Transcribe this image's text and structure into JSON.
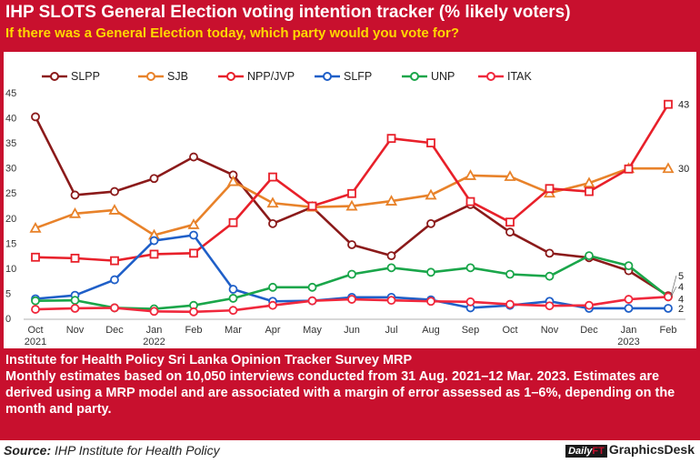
{
  "header": {
    "title": "IHP SLOTS General Election voting intention tracker (% likely voters)",
    "subtitle": "If there was a General Election today, which party would you vote for?"
  },
  "footer": {
    "line1": "Institute for Health Policy Sri Lanka Opinion Tracker Survey MRP",
    "line2": "Monthly estimates based on 10,050 interviews conducted from 31 Aug. 2021–12 Mar. 2023. Estimates are derived using a MRP model and are associated with a margin of error assessed as 1–6%, depending on the month and party."
  },
  "source": {
    "label": "Source:",
    "text": "IHP Institute for Health Policy"
  },
  "brand": {
    "logo": "Daily",
    "logo_ft": "FT",
    "name": "GraphicsDesk"
  },
  "colors": {
    "frame": "#c8102e",
    "SLPP": "#8b1a1a",
    "SJB": "#e8822a",
    "NPP/JVP": "#e8202a",
    "SLFP": "#1f5fc8",
    "UNP": "#1aa64a",
    "ITAK": "#f0283c"
  },
  "chart_data": {
    "type": "line",
    "title": "IHP SLOTS General Election voting intention tracker (% likely voters)",
    "subtitle": "If there was a General Election today, which party would you vote for?",
    "categories": [
      "Oct",
      "Nov",
      "Dec",
      "Jan",
      "Feb",
      "Mar",
      "Apr",
      "May",
      "Jun",
      "Jul",
      "Aug",
      "Sep",
      "Oct",
      "Nov",
      "Dec",
      "Jan",
      "Feb"
    ],
    "year_labels": [
      {
        "index": 0,
        "label": "2021"
      },
      {
        "index": 3,
        "label": "2022"
      },
      {
        "index": 15,
        "label": "2023"
      }
    ],
    "yticks": [
      0,
      5,
      10,
      15,
      20,
      25,
      30,
      35,
      40,
      45
    ],
    "ylim": [
      0,
      45
    ],
    "legend_position": "top",
    "grid": false,
    "series": [
      {
        "name": "SLPP",
        "values": [
          40.2,
          24.6,
          25.3,
          27.9,
          32.2,
          28.6,
          18.9,
          22.2,
          14.7,
          12.5,
          18.9,
          22.7,
          17.2,
          13.0,
          12.1,
          9.5,
          4.5
        ]
      },
      {
        "name": "SJB",
        "values": [
          18.0,
          20.9,
          21.6,
          16.6,
          18.7,
          27.3,
          23.0,
          22.2,
          22.4,
          23.4,
          24.6,
          28.5,
          28.3,
          25.0,
          27.0,
          29.9,
          29.9
        ]
      },
      {
        "name": "NPP/JVP",
        "values": [
          12.2,
          12.0,
          11.5,
          12.8,
          13.0,
          19.1,
          28.2,
          22.4,
          24.9,
          35.9,
          35.0,
          23.3,
          19.2,
          25.9,
          25.3,
          29.8,
          42.7
        ]
      },
      {
        "name": "SLFP",
        "values": [
          3.9,
          4.6,
          7.7,
          15.5,
          16.6,
          5.8,
          3.4,
          3.5,
          4.2,
          4.2,
          3.7,
          2.1,
          2.6,
          3.4,
          2.0,
          2.0,
          2.0
        ]
      },
      {
        "name": "UNP",
        "values": [
          3.5,
          3.6,
          2.1,
          1.9,
          2.6,
          4.0,
          6.2,
          6.2,
          8.8,
          10.1,
          9.2,
          10.1,
          8.8,
          8.4,
          12.5,
          10.5,
          4.3
        ]
      },
      {
        "name": "ITAK",
        "values": [
          1.8,
          2.0,
          2.1,
          1.4,
          1.3,
          1.6,
          2.6,
          3.5,
          3.8,
          3.6,
          3.4,
          3.3,
          2.8,
          2.5,
          2.6,
          3.8,
          4.3
        ]
      }
    ],
    "end_labels": [
      {
        "series": "NPP/JVP",
        "text": "43"
      },
      {
        "series": "SJB",
        "text": "30"
      },
      {
        "series": "SLPP",
        "text": "5"
      },
      {
        "series": "UNP",
        "text": "4"
      },
      {
        "series": "ITAK",
        "text": "4"
      },
      {
        "series": "SLFP",
        "text": "2"
      }
    ]
  }
}
